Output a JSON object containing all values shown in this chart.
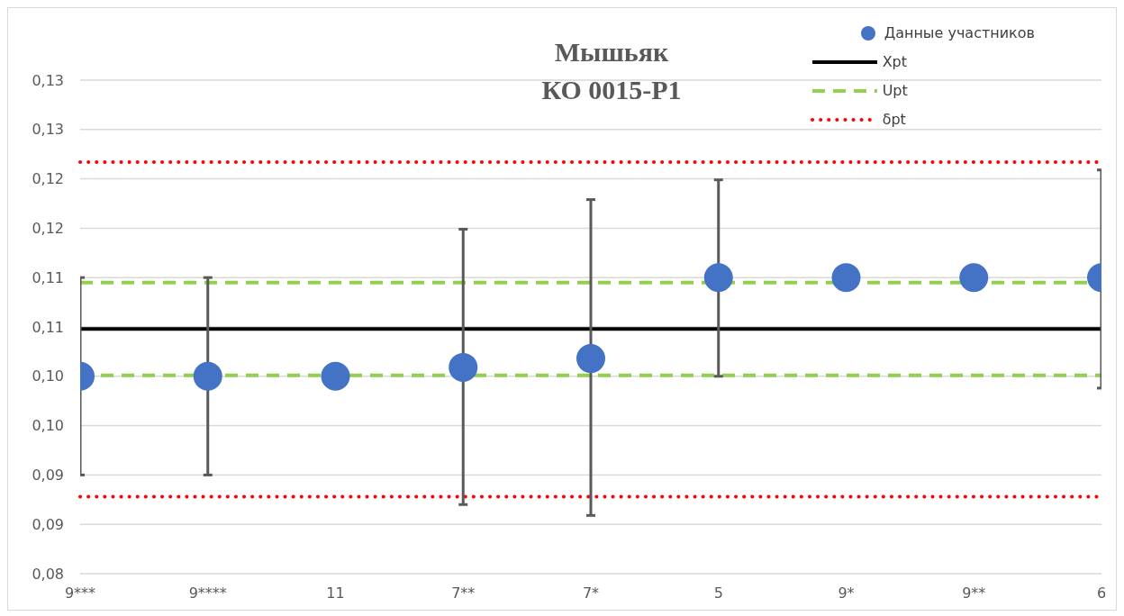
{
  "chart_data": {
    "type": "scatter",
    "title": "Мышьяк\nКО 0015-Р1",
    "categories": [
      "9***",
      "9****",
      "11",
      "7**",
      "7*",
      "5",
      "9*",
      "9**",
      "6"
    ],
    "series": [
      {
        "name": "Данные участников",
        "color": "#4472c4",
        "values": [
          0.1,
          0.1,
          0.1,
          0.1009,
          0.1018,
          0.11,
          0.11,
          0.11,
          0.11
        ],
        "errors": [
          [
            0.09,
            0.11
          ],
          [
            0.09,
            0.11
          ],
          null,
          [
            0.087,
            0.1149
          ],
          [
            0.0859,
            0.1179
          ],
          [
            0.1,
            0.1199
          ],
          null,
          null,
          [
            0.0988,
            0.1209
          ]
        ]
      }
    ],
    "ref_lines": [
      {
        "axis": "y",
        "value": 0.1048,
        "label": "Xpt",
        "color": "#000000",
        "line_style": "solid"
      },
      {
        "axis": "y",
        "value": 0.1095,
        "label": "Upt",
        "color": "#92d050",
        "line_style": "dashed"
      },
      {
        "axis": "y",
        "value": 0.1001,
        "color": "#92d050",
        "line_style": "dashed"
      },
      {
        "axis": "y",
        "value": 0.1217,
        "label": "δpt",
        "color": "#ff0000",
        "line_style": "dotted"
      },
      {
        "axis": "y",
        "value": 0.0878,
        "color": "#ff0000",
        "line_style": "dotted"
      }
    ],
    "ylim": [
      0.08,
      0.13
    ],
    "yticks": [
      {
        "value": 0.08,
        "label": "0,08"
      },
      {
        "value": 0.085,
        "label": "0,09"
      },
      {
        "value": 0.09,
        "label": "0,09"
      },
      {
        "value": 0.095,
        "label": "0,10"
      },
      {
        "value": 0.1,
        "label": "0,10"
      },
      {
        "value": 0.105,
        "label": "0,11"
      },
      {
        "value": 0.11,
        "label": "0,11"
      },
      {
        "value": 0.115,
        "label": "0,12"
      },
      {
        "value": 0.12,
        "label": "0,12"
      },
      {
        "value": 0.125,
        "label": "0,13"
      },
      {
        "value": 0.13,
        "label": "0,13"
      }
    ],
    "grid": "y",
    "legend": "top right",
    "marker": "circle"
  }
}
